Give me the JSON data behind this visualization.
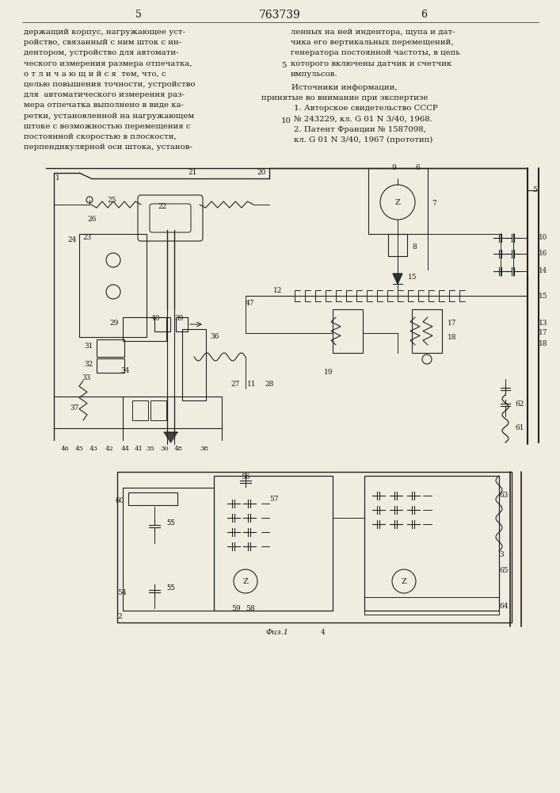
{
  "page_number_left": "5",
  "page_number_center": "763739",
  "page_number_right": "6",
  "left_column_text": [
    "держащий корпус, нагружающее уст-",
    "ройство, связанный с ним шток с ин-",
    "дентором, устройство для автомати-",
    "ческого измерения размера отпечатка,",
    "о т л и ч а ю щ и й с я  тем, что, с",
    "целью повышения точности, устройство",
    "для  автоматического измерения раз-",
    "мера отпечатка выполнено в виде ка-",
    "ретки, установленной на нагружающем",
    "штоке с возможностью перемещения с",
    "постоянной скоростью в плоскости,",
    "перпендикулярной оси штока, установ-"
  ],
  "right_column_text": [
    "ленных на ней индентора, щупа и дат-",
    "чика его вертикальных перемещений,",
    "генератора постоянной частоты, в цепь",
    "которого включены датчик и счетчик",
    "импульсов."
  ],
  "sources_header": "Источники информации,",
  "sources_subheader": "принятые во внимание при экспертизе",
  "source1": "1. Авторское свидетельство СССР",
  "source1b": "№ 243229, кл. G 01 N 3/40, 1968.",
  "source2": "2. Патент Франции № 1587098,",
  "source2b": "кл. G 01 N 3/40, 1967 (прототип)",
  "figure_label": "Φиз.1",
  "background_color": "#f0ece0",
  "text_color": "#1a1a1a",
  "line_color": "#222222"
}
